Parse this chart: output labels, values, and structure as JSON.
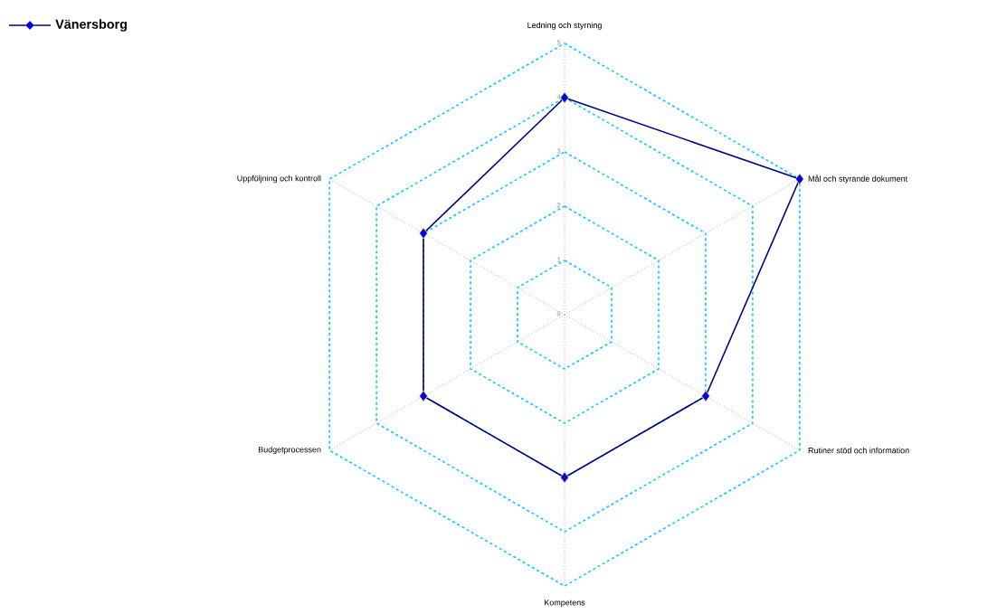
{
  "chart_data": {
    "type": "radar",
    "categories": [
      "Ledning och styrning",
      "Mål och styrande dokument",
      "Rutiner stöd och information",
      "Kompetens",
      "Budgetprocessen",
      "Uppföljning och kontroll"
    ],
    "series": [
      {
        "name": "Vänersborg",
        "color": "#000080",
        "values": [
          4,
          5,
          3,
          3,
          3,
          3
        ]
      }
    ],
    "ylim": [
      0,
      5
    ],
    "yticks": [
      0,
      1,
      2,
      3,
      4,
      5
    ],
    "grid": true,
    "legend": "top left",
    "marker": "diamond",
    "line_style": "solid"
  }
}
